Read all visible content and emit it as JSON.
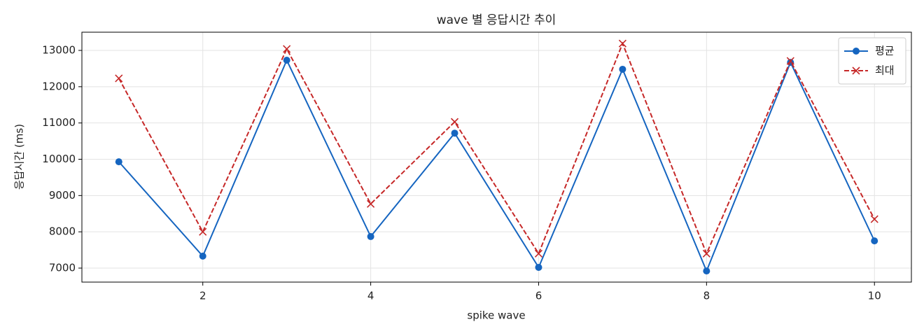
{
  "chart_data": {
    "type": "line",
    "title": "wave 별 응답시간 추이",
    "x_label": "spike wave",
    "y_label": "응답시간 (ms)",
    "x": [
      1,
      2,
      3,
      4,
      5,
      6,
      7,
      8,
      9,
      10
    ],
    "series": [
      {
        "name": "평균",
        "color": "#1565c0",
        "marker": "o",
        "linestyle": "solid",
        "values": [
          9930,
          7330,
          12730,
          7870,
          10720,
          7020,
          12480,
          6920,
          12670,
          7750
        ]
      },
      {
        "name": "최대",
        "color": "#c62828",
        "marker": "x",
        "linestyle": "dashed",
        "values": [
          12230,
          8000,
          13040,
          8770,
          11030,
          7400,
          13190,
          7400,
          12710,
          8350
        ]
      }
    ],
    "xlim": [
      0.56,
      10.44
    ],
    "xticks": [
      2,
      4,
      6,
      8,
      10
    ],
    "ylim": [
      6614,
      13502
    ],
    "yticks": [
      7000,
      8000,
      9000,
      10000,
      11000,
      12000,
      13000
    ],
    "grid": true,
    "legend": "upper right"
  }
}
